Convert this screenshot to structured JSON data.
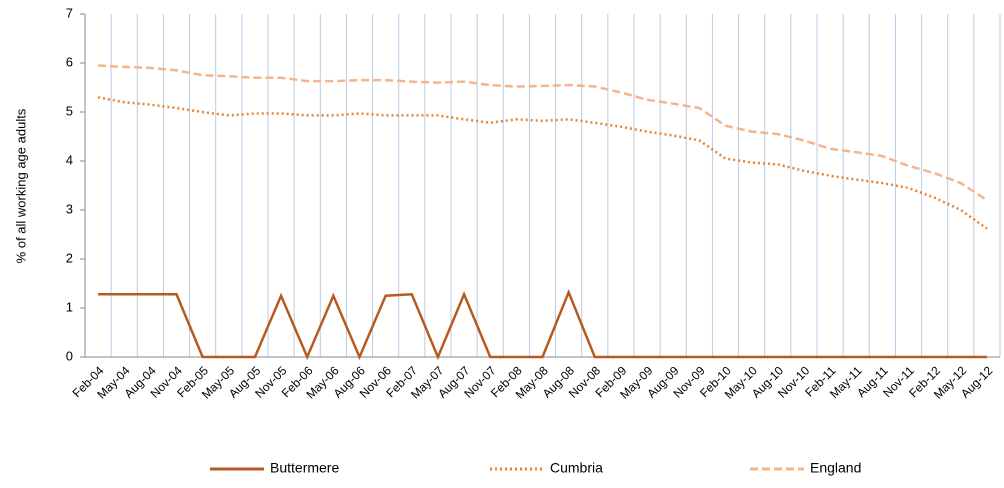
{
  "chart_data": {
    "type": "line",
    "y_label": "% of all working age adults",
    "categories": [
      "Feb-04",
      "May-04",
      "Aug-04",
      "Nov-04",
      "Feb-05",
      "May-05",
      "Aug-05",
      "Nov-05",
      "Feb-06",
      "May-06",
      "Aug-06",
      "Nov-06",
      "Feb-07",
      "May-07",
      "Aug-07",
      "Nov-07",
      "Feb-08",
      "May-08",
      "Aug-08",
      "Nov-08",
      "Feb-09",
      "May-09",
      "Aug-09",
      "Nov-09",
      "Feb-10",
      "May-10",
      "Aug-10",
      "Nov-10",
      "Feb-11",
      "May-11",
      "Aug-11",
      "Nov-11",
      "Feb-12",
      "May-12",
      "Aug-12"
    ],
    "series": [
      {
        "name": "Buttermere",
        "color": "#b85a1f",
        "style": "solid",
        "values": [
          1.28,
          1.28,
          1.28,
          1.28,
          0,
          0,
          0,
          1.25,
          0,
          1.25,
          0,
          1.25,
          1.28,
          0,
          1.28,
          0,
          0,
          0,
          1.32,
          0,
          0,
          0,
          0,
          0,
          0,
          0,
          0,
          0,
          0,
          0,
          0,
          0,
          0,
          0,
          0
        ]
      },
      {
        "name": "Cumbria",
        "color": "#e8822e",
        "style": "dotted",
        "values": [
          5.3,
          5.2,
          5.15,
          5.08,
          5.0,
          4.93,
          4.97,
          4.97,
          4.93,
          4.93,
          4.97,
          4.93,
          4.93,
          4.93,
          4.85,
          4.78,
          4.85,
          4.82,
          4.85,
          4.78,
          4.7,
          4.6,
          4.52,
          4.42,
          4.05,
          3.97,
          3.93,
          3.8,
          3.7,
          3.62,
          3.55,
          3.45,
          3.25,
          3.0,
          2.62
        ]
      },
      {
        "name": "England",
        "color": "#f6b48a",
        "style": "dashed",
        "values": [
          5.95,
          5.92,
          5.9,
          5.85,
          5.75,
          5.73,
          5.7,
          5.7,
          5.63,
          5.63,
          5.65,
          5.65,
          5.62,
          5.6,
          5.62,
          5.55,
          5.52,
          5.53,
          5.55,
          5.52,
          5.4,
          5.25,
          5.17,
          5.08,
          4.72,
          4.6,
          4.55,
          4.42,
          4.25,
          4.18,
          4.1,
          3.9,
          3.75,
          3.55,
          3.2
        ]
      }
    ],
    "ylim": [
      0,
      7
    ],
    "yticks": [
      0,
      1,
      2,
      3,
      4,
      5,
      6,
      7
    ],
    "xgrid": true,
    "grid_color": "#b8cce4",
    "legend": "bottom"
  }
}
